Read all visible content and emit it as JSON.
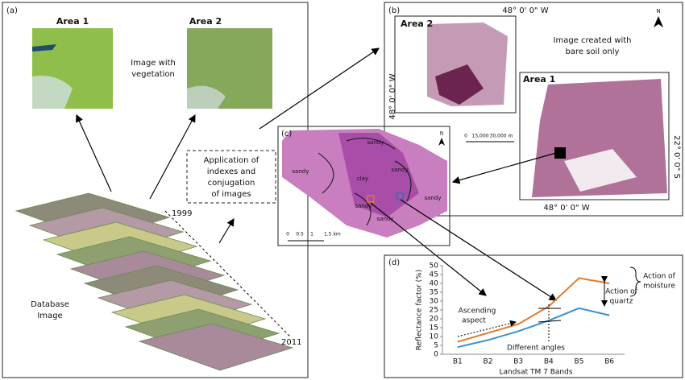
{
  "panels": {
    "a": {
      "label": "(a)",
      "area1": "Area 1",
      "area2": "Area 2",
      "vegetation": [
        "Image with",
        "vegetation"
      ],
      "process": [
        "Application of",
        "indexes and",
        "conjugation",
        "of images"
      ],
      "year_start": "1999",
      "year_end": "2011",
      "database": [
        "Database",
        "Image"
      ]
    },
    "b": {
      "label": "(b)",
      "area2": "Area 2",
      "area1": "Area 1",
      "coord_top": "48° 0' 0\" W",
      "coord_left": "48° 0' 0\" W",
      "coord_right": "22° 0' 0\" S",
      "coord_bottom": "48° 0' 0\" W",
      "north": "N",
      "bare_soil": [
        "Image created with",
        "bare soil only"
      ],
      "scale": [
        "0",
        "15,000",
        "30,000 m"
      ]
    },
    "c": {
      "label": "(c)",
      "north": "N",
      "soils": [
        "sandy",
        "sandy",
        "clay",
        "sandy",
        "sandy",
        "sandy",
        "sandy"
      ],
      "scale": [
        "0",
        "0.5",
        "1",
        "1.5 km"
      ]
    },
    "d": {
      "label": "(d)"
    }
  },
  "chart_data": {
    "type": "line",
    "y_label": "Reflectance factor (%)",
    "x_label": "Landsat TM 7 Bands",
    "categories": [
      "B1",
      "B2",
      "B3",
      "B4",
      "B5",
      "B6"
    ],
    "series": [
      {
        "color": "#e07b2a",
        "values": [
          7,
          12,
          17,
          27,
          43,
          40
        ]
      },
      {
        "color": "#3b8fd0",
        "values": [
          4,
          8,
          13,
          19,
          26,
          22
        ]
      }
    ],
    "ylim": [
      0,
      50
    ],
    "yticks": [
      0,
      5,
      10,
      15,
      20,
      25,
      30,
      35,
      40,
      45,
      50
    ],
    "annotations": {
      "moisture": [
        "Action of",
        "moisture"
      ],
      "quartz": [
        "Action of",
        "quartz"
      ],
      "ascending": [
        "Ascending",
        "aspect"
      ],
      "angles": "Different angles"
    }
  }
}
